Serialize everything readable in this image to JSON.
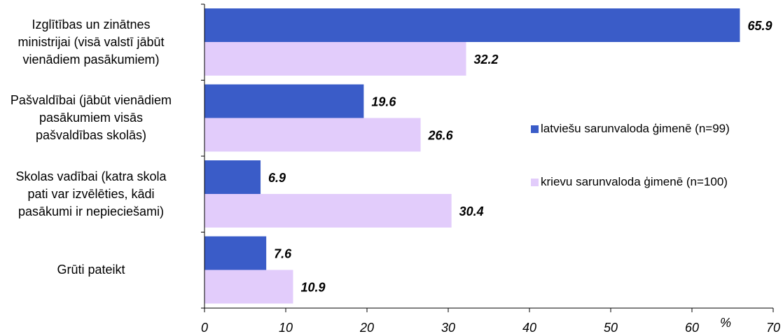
{
  "chart_data": {
    "type": "bar",
    "orientation": "horizontal",
    "categories": [
      [
        "Izglītības un zinātnes",
        "ministrijai (visā valstī jābūt",
        "vienādiem pasākumiem)"
      ],
      [
        "Pašvaldībai (jābūt vienādiem",
        "pasākumiem visās",
        "pašvaldības skolās)"
      ],
      [
        "Skolas vadībai (katra skola",
        "pati var izvēlēties, kādi",
        "pasākumi ir nepieciešami)"
      ],
      [
        "Grūti pateikt"
      ]
    ],
    "series": [
      {
        "name": "latviešu sarunvaloda ģimenē (n=99)",
        "color": "#3A5CC8",
        "values": [
          65.9,
          19.6,
          6.9,
          7.6
        ]
      },
      {
        "name": "krievu sarunvaloda ģimenē (n=100)",
        "color": "#E2CCFB",
        "values": [
          32.2,
          26.6,
          30.4,
          10.9
        ]
      }
    ],
    "xlim": [
      0,
      70
    ],
    "xticks": [
      0,
      10,
      20,
      30,
      40,
      50,
      60,
      70
    ],
    "x_unit": "%",
    "grid": false,
    "legend_position": "right"
  }
}
